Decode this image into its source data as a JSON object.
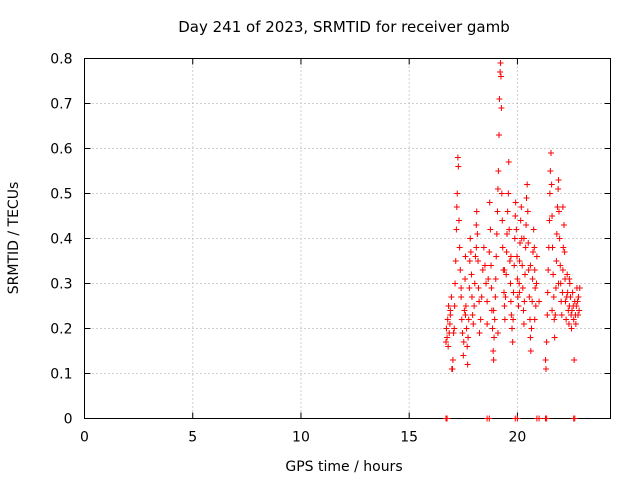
{
  "chart_data": {
    "type": "scatter",
    "title": "Day 241 of 2023, SRMTID for receiver gamb",
    "xlabel": "GPS time / hours",
    "ylabel": "SRMTID / TECUs",
    "xlim": [
      0,
      24.3
    ],
    "ylim": [
      0,
      0.8
    ],
    "xticks": [
      0,
      5,
      10,
      15,
      20
    ],
    "yticks": [
      0,
      0.1,
      0.2,
      0.3,
      0.4,
      0.5,
      0.6,
      0.7,
      0.8
    ],
    "xtick_labels": [
      "0",
      "5",
      "10",
      "15",
      "20"
    ],
    "ytick_labels": [
      "0",
      "0.1",
      "0.2",
      "0.3",
      "0.4",
      "0.5",
      "0.6",
      "0.7",
      "0.8"
    ],
    "grid": true,
    "marker": "+",
    "color": "#ff0000",
    "series": [
      {
        "name": "SRMTID",
        "points": [
          [
            16.7,
            0.0
          ],
          [
            16.75,
            0.0
          ],
          [
            18.6,
            0.0
          ],
          [
            18.7,
            0.0
          ],
          [
            19.9,
            0.0
          ],
          [
            20.0,
            0.0
          ],
          [
            20.9,
            0.0
          ],
          [
            21.0,
            0.0
          ],
          [
            21.3,
            0.0
          ],
          [
            21.35,
            0.0
          ],
          [
            22.6,
            0.0
          ],
          [
            22.65,
            0.0
          ],
          [
            16.7,
            0.17
          ],
          [
            16.72,
            0.2
          ],
          [
            16.75,
            0.18
          ],
          [
            16.78,
            0.22
          ],
          [
            16.8,
            0.16
          ],
          [
            16.82,
            0.25
          ],
          [
            16.85,
            0.19
          ],
          [
            16.88,
            0.21
          ],
          [
            16.9,
            0.23
          ],
          [
            16.95,
            0.27
          ],
          [
            16.97,
            0.11
          ],
          [
            17.0,
            0.11
          ],
          [
            17.02,
            0.13
          ],
          [
            17.05,
            0.19
          ],
          [
            17.1,
            0.25
          ],
          [
            17.12,
            0.3
          ],
          [
            17.15,
            0.35
          ],
          [
            17.18,
            0.42
          ],
          [
            17.2,
            0.47
          ],
          [
            17.22,
            0.5
          ],
          [
            17.25,
            0.58
          ],
          [
            17.27,
            0.56
          ],
          [
            17.3,
            0.44
          ],
          [
            17.33,
            0.38
          ],
          [
            17.36,
            0.33
          ],
          [
            17.4,
            0.27
          ],
          [
            17.43,
            0.22
          ],
          [
            17.46,
            0.19
          ],
          [
            17.5,
            0.14
          ],
          [
            17.52,
            0.17
          ],
          [
            17.55,
            0.24
          ],
          [
            17.58,
            0.31
          ],
          [
            17.6,
            0.36
          ],
          [
            17.62,
            0.25
          ],
          [
            17.65,
            0.2
          ],
          [
            17.68,
            0.16
          ],
          [
            17.7,
            0.12
          ],
          [
            17.72,
            0.18
          ],
          [
            17.75,
            0.22
          ],
          [
            17.78,
            0.29
          ],
          [
            17.8,
            0.35
          ],
          [
            17.82,
            0.4
          ],
          [
            17.85,
            0.37
          ],
          [
            17.88,
            0.32
          ],
          [
            17.9,
            0.27
          ],
          [
            17.93,
            0.23
          ],
          [
            17.96,
            0.21
          ],
          [
            18.0,
            0.25
          ],
          [
            18.03,
            0.3
          ],
          [
            18.06,
            0.36
          ],
          [
            18.1,
            0.43
          ],
          [
            18.12,
            0.46
          ],
          [
            18.15,
            0.41
          ],
          [
            18.18,
            0.35
          ],
          [
            18.2,
            0.29
          ],
          [
            18.23,
            0.26
          ],
          [
            18.3,
            0.22
          ],
          [
            18.35,
            0.27
          ],
          [
            18.4,
            0.33
          ],
          [
            18.45,
            0.38
          ],
          [
            18.5,
            0.34
          ],
          [
            18.55,
            0.3
          ],
          [
            18.6,
            0.26
          ],
          [
            18.65,
            0.31
          ],
          [
            18.7,
            0.37
          ],
          [
            18.72,
            0.48
          ],
          [
            18.75,
            0.42
          ],
          [
            18.78,
            0.34
          ],
          [
            18.8,
            0.29
          ],
          [
            18.82,
            0.24
          ],
          [
            18.85,
            0.2
          ],
          [
            18.88,
            0.15
          ],
          [
            18.9,
            0.13
          ],
          [
            18.92,
            0.18
          ],
          [
            18.95,
            0.22
          ],
          [
            18.98,
            0.27
          ],
          [
            19.0,
            0.31
          ],
          [
            19.02,
            0.36
          ],
          [
            19.05,
            0.41
          ],
          [
            19.08,
            0.46
          ],
          [
            19.1,
            0.51
          ],
          [
            19.12,
            0.55
          ],
          [
            19.15,
            0.63
          ],
          [
            19.17,
            0.71
          ],
          [
            19.2,
            0.77
          ],
          [
            19.22,
            0.79
          ],
          [
            19.24,
            0.76
          ],
          [
            19.26,
            0.69
          ],
          [
            19.28,
            0.5
          ],
          [
            19.3,
            0.44
          ],
          [
            19.32,
            0.38
          ],
          [
            19.35,
            0.33
          ],
          [
            19.38,
            0.28
          ],
          [
            19.4,
            0.25
          ],
          [
            19.42,
            0.22
          ],
          [
            19.45,
            0.27
          ],
          [
            19.48,
            0.32
          ],
          [
            19.5,
            0.37
          ],
          [
            19.52,
            0.41
          ],
          [
            19.55,
            0.46
          ],
          [
            19.58,
            0.5
          ],
          [
            19.6,
            0.57
          ],
          [
            19.62,
            0.42
          ],
          [
            19.65,
            0.35
          ],
          [
            19.68,
            0.3
          ],
          [
            19.7,
            0.26
          ],
          [
            19.72,
            0.23
          ],
          [
            19.75,
            0.2
          ],
          [
            19.78,
            0.17
          ],
          [
            19.8,
            0.22
          ],
          [
            19.82,
            0.28
          ],
          [
            19.85,
            0.34
          ],
          [
            19.88,
            0.4
          ],
          [
            19.9,
            0.45
          ],
          [
            19.92,
            0.48
          ],
          [
            19.95,
            0.42
          ],
          [
            19.98,
            0.36
          ],
          [
            20.0,
            0.31
          ],
          [
            20.02,
            0.27
          ],
          [
            20.05,
            0.25
          ],
          [
            20.08,
            0.3
          ],
          [
            20.1,
            0.35
          ],
          [
            20.12,
            0.39
          ],
          [
            20.15,
            0.44
          ],
          [
            20.18,
            0.47
          ],
          [
            20.2,
            0.4
          ],
          [
            20.22,
            0.34
          ],
          [
            20.25,
            0.29
          ],
          [
            20.28,
            0.24
          ],
          [
            20.3,
            0.21
          ],
          [
            20.32,
            0.26
          ],
          [
            20.35,
            0.32
          ],
          [
            20.38,
            0.38
          ],
          [
            20.4,
            0.43
          ],
          [
            20.42,
            0.49
          ],
          [
            20.45,
            0.52
          ],
          [
            20.48,
            0.46
          ],
          [
            20.5,
            0.39
          ],
          [
            20.52,
            0.33
          ],
          [
            20.55,
            0.27
          ],
          [
            20.58,
            0.22
          ],
          [
            20.6,
            0.18
          ],
          [
            20.62,
            0.15
          ],
          [
            20.65,
            0.2
          ],
          [
            20.68,
            0.26
          ],
          [
            20.7,
            0.31
          ],
          [
            20.72,
            0.37
          ],
          [
            20.75,
            0.42
          ],
          [
            20.78,
            0.38
          ],
          [
            20.8,
            0.33
          ],
          [
            20.82,
            0.29
          ],
          [
            20.85,
            0.25
          ],
          [
            20.88,
            0.3
          ],
          [
            20.9,
            0.36
          ],
          [
            21.3,
            0.13
          ],
          [
            21.32,
            0.11
          ],
          [
            21.35,
            0.17
          ],
          [
            21.38,
            0.23
          ],
          [
            21.4,
            0.28
          ],
          [
            21.42,
            0.33
          ],
          [
            21.45,
            0.38
          ],
          [
            21.48,
            0.44
          ],
          [
            21.5,
            0.5
          ],
          [
            21.52,
            0.55
          ],
          [
            21.55,
            0.59
          ],
          [
            21.58,
            0.52
          ],
          [
            21.6,
            0.45
          ],
          [
            21.62,
            0.38
          ],
          [
            21.65,
            0.32
          ],
          [
            21.68,
            0.27
          ],
          [
            21.7,
            0.22
          ],
          [
            21.72,
            0.18
          ],
          [
            21.75,
            0.23
          ],
          [
            21.78,
            0.29
          ],
          [
            21.8,
            0.35
          ],
          [
            21.82,
            0.41
          ],
          [
            21.85,
            0.47
          ],
          [
            21.88,
            0.51
          ],
          [
            21.9,
            0.53
          ],
          [
            21.92,
            0.46
          ],
          [
            21.95,
            0.4
          ],
          [
            21.98,
            0.34
          ],
          [
            22.0,
            0.3
          ],
          [
            22.02,
            0.26
          ],
          [
            22.05,
            0.23
          ],
          [
            22.08,
            0.28
          ],
          [
            22.1,
            0.33
          ],
          [
            22.12,
            0.38
          ],
          [
            22.15,
            0.43
          ],
          [
            22.18,
            0.37
          ],
          [
            22.2,
            0.31
          ],
          [
            22.22,
            0.26
          ],
          [
            22.25,
            0.22
          ],
          [
            22.28,
            0.27
          ],
          [
            22.3,
            0.32
          ],
          [
            22.32,
            0.28
          ],
          [
            22.35,
            0.24
          ],
          [
            22.38,
            0.21
          ],
          [
            22.4,
            0.25
          ],
          [
            22.42,
            0.3
          ],
          [
            22.45,
            0.27
          ],
          [
            22.48,
            0.23
          ],
          [
            22.5,
            0.2
          ],
          [
            22.52,
            0.24
          ],
          [
            22.55,
            0.28
          ],
          [
            22.58,
            0.25
          ],
          [
            22.6,
            0.22
          ],
          [
            22.62,
            0.13
          ],
          [
            22.65,
            0.26
          ],
          [
            22.68,
            0.23
          ],
          [
            22.7,
            0.21
          ],
          [
            22.72,
            0.25
          ],
          [
            22.75,
            0.29
          ],
          [
            22.78,
            0.26
          ],
          [
            22.8,
            0.23
          ],
          [
            22.82,
            0.27
          ],
          [
            22.85,
            0.24
          ],
          [
            22.88,
            0.29
          ],
          [
            17.08,
            0.2
          ],
          [
            17.6,
            0.23
          ],
          [
            18.25,
            0.19
          ],
          [
            18.9,
            0.24
          ],
          [
            19.4,
            0.33
          ],
          [
            20.1,
            0.28
          ],
          [
            20.6,
            0.34
          ],
          [
            21.0,
            0.26
          ],
          [
            21.9,
            0.3
          ],
          [
            22.4,
            0.31
          ],
          [
            16.9,
            0.24
          ],
          [
            17.4,
            0.29
          ],
          [
            18.1,
            0.38
          ],
          [
            18.6,
            0.21
          ],
          [
            19.1,
            0.19
          ],
          [
            19.7,
            0.36
          ],
          [
            20.3,
            0.4
          ],
          [
            20.8,
            0.22
          ],
          [
            21.6,
            0.24
          ],
          [
            22.1,
            0.47
          ]
        ]
      }
    ]
  }
}
